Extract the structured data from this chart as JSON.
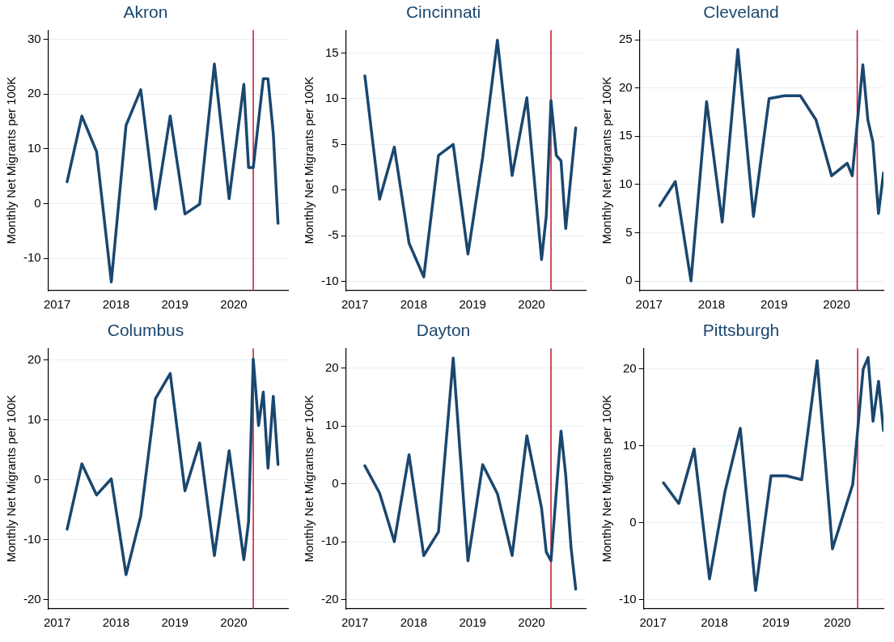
{
  "chart_data": [
    {
      "type": "line",
      "title": "Akron",
      "ylabel": "Monthly Net Migrants per 100K",
      "grid": "y",
      "xlim": [
        2016.85,
        2020.92
      ],
      "xticks": [
        2017,
        2018,
        2019,
        2020
      ],
      "ylim": [
        -15.9,
        31.7
      ],
      "yticks": [
        -10,
        0,
        10,
        20,
        30
      ],
      "ref_lines": [
        {
          "axis": "x",
          "value": 2020.33,
          "color": "#c8102e"
        }
      ],
      "x": [
        2017.17,
        2017.42,
        2017.67,
        2017.92,
        2018.17,
        2018.42,
        2018.67,
        2018.92,
        2019.17,
        2019.42,
        2019.67,
        2019.92,
        2020.17,
        2020.25,
        2020.33,
        2020.5,
        2020.58,
        2020.67,
        2020.75
      ],
      "series": [
        {
          "color": "#1a476f",
          "values": [
            4,
            16,
            9.5,
            -14.3,
            14.3,
            20.8,
            -1,
            16,
            -1.9,
            -0.1,
            25.5,
            0.9,
            21.8,
            6.6,
            6.6,
            22.8,
            22.8,
            12.8,
            -3.6
          ]
        }
      ]
    },
    {
      "type": "line",
      "title": "Cincinnati",
      "ylabel": "Monthly Net Migrants per 100K",
      "grid": "y",
      "xlim": [
        2016.85,
        2020.92
      ],
      "xticks": [
        2017,
        2018,
        2019,
        2020
      ],
      "ylim": [
        -11,
        17.5
      ],
      "yticks": [
        -10,
        -5,
        0,
        5,
        10,
        15
      ],
      "ref_lines": [
        {
          "axis": "x",
          "value": 2020.33,
          "color": "#c8102e"
        }
      ],
      "x": [
        2017.17,
        2017.42,
        2017.67,
        2017.92,
        2018.17,
        2018.42,
        2018.67,
        2018.92,
        2019.17,
        2019.42,
        2019.67,
        2019.92,
        2020.17,
        2020.25,
        2020.33,
        2020.42,
        2020.5,
        2020.58,
        2020.75
      ],
      "series": [
        {
          "color": "#1a476f",
          "values": [
            12.5,
            -1,
            4.7,
            -5.8,
            -9.5,
            3.8,
            5,
            -7,
            3.6,
            16.4,
            1.6,
            10.1,
            -7.6,
            -2.8,
            9.8,
            3.8,
            3.2,
            -4.2,
            6.8
          ]
        }
      ]
    },
    {
      "type": "line",
      "title": "Cleveland",
      "ylabel": "Monthly Net Migrants per 100K",
      "grid": "y",
      "xlim": [
        2016.85,
        2020.75
      ],
      "xticks": [
        2017,
        2018,
        2019,
        2020
      ],
      "ylim": [
        -1,
        26
      ],
      "yticks": [
        0,
        5,
        10,
        15,
        20,
        25
      ],
      "ref_lines": [
        {
          "axis": "x",
          "value": 2020.33,
          "color": "#c8102e"
        }
      ],
      "x": [
        2017.17,
        2017.42,
        2017.67,
        2017.92,
        2018.17,
        2018.42,
        2018.67,
        2018.92,
        2019.17,
        2019.42,
        2019.67,
        2019.92,
        2020.17,
        2020.25,
        2020.42,
        2020.5,
        2020.58,
        2020.67,
        2020.75
      ],
      "series": [
        {
          "color": "#1a476f",
          "values": [
            7.8,
            10.3,
            0,
            18.6,
            6.1,
            24,
            6.7,
            18.9,
            19.2,
            19.2,
            16.7,
            10.9,
            12.2,
            10.9,
            22.4,
            16.7,
            14.4,
            7,
            11.2
          ]
        }
      ]
    },
    {
      "type": "line",
      "title": "Columbus",
      "ylabel": "Monthly Net Migrants per 100K",
      "grid": "y",
      "xlim": [
        2016.85,
        2020.92
      ],
      "xticks": [
        2017,
        2018,
        2019,
        2020
      ],
      "ylim": [
        -21.5,
        22
      ],
      "yticks": [
        -20,
        -10,
        0,
        10,
        20
      ],
      "ref_lines": [
        {
          "axis": "x",
          "value": 2020.33,
          "color": "#c8102e"
        }
      ],
      "x": [
        2017.17,
        2017.42,
        2017.67,
        2017.92,
        2018.17,
        2018.42,
        2018.67,
        2018.92,
        2019.17,
        2019.42,
        2019.67,
        2019.92,
        2020.17,
        2020.25,
        2020.33,
        2020.42,
        2020.5,
        2020.58,
        2020.67,
        2020.75
      ],
      "series": [
        {
          "color": "#1a476f",
          "values": [
            -8.2,
            2.7,
            -2.5,
            0.2,
            -15.8,
            -6,
            13.6,
            17.8,
            -1.8,
            6.2,
            -12.6,
            4.9,
            -13.3,
            -7,
            20.2,
            9.1,
            14.7,
            2,
            14,
            2.6
          ]
        }
      ]
    },
    {
      "type": "line",
      "title": "Dayton",
      "ylabel": "Monthly Net Migrants per 100K",
      "grid": "y",
      "xlim": [
        2016.85,
        2020.92
      ],
      "xticks": [
        2017,
        2018,
        2019,
        2020
      ],
      "ylim": [
        -21.6,
        23.4
      ],
      "yticks": [
        -20,
        -10,
        0,
        10,
        20
      ],
      "ref_lines": [
        {
          "axis": "x",
          "value": 2020.33,
          "color": "#c8102e"
        }
      ],
      "x": [
        2017.17,
        2017.42,
        2017.67,
        2017.92,
        2018.17,
        2018.42,
        2018.67,
        2018.92,
        2019.17,
        2019.42,
        2019.67,
        2019.92,
        2020.17,
        2020.25,
        2020.33,
        2020.5,
        2020.58,
        2020.67,
        2020.75
      ],
      "series": [
        {
          "color": "#1a476f",
          "values": [
            3.1,
            -1.6,
            -10,
            5,
            -12.4,
            -8.3,
            21.7,
            -13.3,
            3.3,
            -1.7,
            -12.4,
            8.3,
            -4.2,
            -11.8,
            -13.3,
            9.1,
            1.5,
            -11,
            -18.2
          ]
        }
      ]
    },
    {
      "type": "line",
      "title": "Pittsburgh",
      "ylabel": "Monthly Net Migrants per 100K",
      "grid": "y",
      "xlim": [
        2016.85,
        2020.75
      ],
      "xticks": [
        2017,
        2018,
        2019,
        2020
      ],
      "ylim": [
        -11.2,
        22.7
      ],
      "yticks": [
        -10,
        0,
        10,
        20
      ],
      "ref_lines": [
        {
          "axis": "x",
          "value": 2020.33,
          "color": "#c8102e"
        }
      ],
      "x": [
        2017.17,
        2017.42,
        2017.67,
        2017.92,
        2018.17,
        2018.42,
        2018.67,
        2018.92,
        2019.17,
        2019.42,
        2019.67,
        2019.92,
        2020.25,
        2020.42,
        2020.5,
        2020.58,
        2020.67,
        2020.75
      ],
      "series": [
        {
          "color": "#1a476f",
          "values": [
            5.2,
            2.5,
            9.6,
            -7.3,
            4,
            12.3,
            -8.8,
            6.1,
            6.1,
            5.6,
            21.1,
            -3.4,
            5,
            20,
            21.5,
            13.2,
            18.4,
            12
          ]
        }
      ]
    }
  ]
}
